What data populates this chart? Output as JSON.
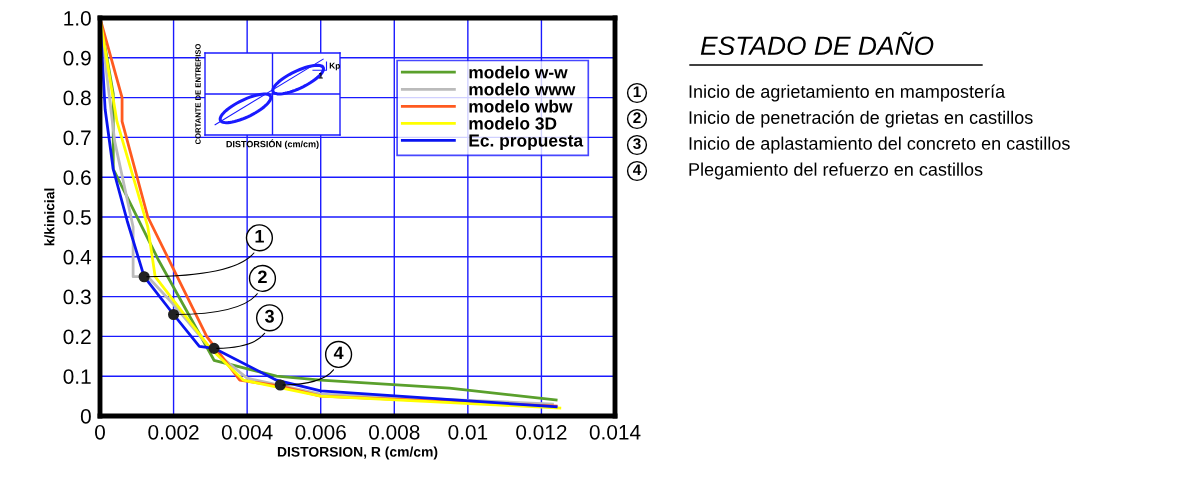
{
  "chart_data": {
    "type": "line",
    "xlabel": "DISTORSION, R (cm/cm)",
    "ylabel": "k/kinicial",
    "xlim": [
      0,
      0.014
    ],
    "ylim": [
      0,
      1.0
    ],
    "xticks": [
      0,
      0.002,
      0.004,
      0.006,
      0.008,
      0.01,
      0.012,
      0.014
    ],
    "yticks": [
      0,
      0.1,
      0.2,
      0.3,
      0.4,
      0.5,
      0.6,
      0.7,
      0.8,
      0.9,
      {
        "value": 1,
        "label": "1.0"
      }
    ],
    "grid": true,
    "legend": "top right",
    "marker": "none",
    "line_style": "solid",
    "series": [
      {
        "name": "modelo w-w",
        "color": "#5aa02c",
        "x": [
          0,
          0.00036,
          0.00036,
          0.0016,
          0.0031,
          0.0048,
          0.006,
          0.0095,
          0.0124
        ],
        "values": [
          1.0,
          0.81,
          0.62,
          0.39,
          0.14,
          0.1,
          0.09,
          0.07,
          0.04
        ]
      },
      {
        "name": "modelo www",
        "color": "#bbbbbb",
        "x": [
          0,
          0.0004,
          0.0009,
          0.0009,
          0.0013,
          0.002,
          0.003,
          0.004,
          0.006,
          0.0123
        ],
        "values": [
          1.0,
          0.69,
          0.475,
          0.35,
          0.35,
          0.28,
          0.17,
          0.095,
          0.055,
          0.03
        ]
      },
      {
        "name": "modelo wbw",
        "color": "#ff5a1f",
        "x": [
          0,
          0.0006,
          0.0006,
          0.0013,
          0.0029,
          0.0038,
          0.0049,
          0.006,
          0.0124
        ],
        "values": [
          1.0,
          0.8,
          0.74,
          0.5,
          0.2,
          0.09,
          0.075,
          0.05,
          0.025
        ]
      },
      {
        "name": "modelo 3D",
        "color": "#ffff00",
        "x": [
          0,
          0.00046,
          0.0013,
          0.0015,
          0.003,
          0.0039,
          0.006,
          0.0125
        ],
        "values": [
          1.0,
          0.74,
          0.475,
          0.35,
          0.17,
          0.09,
          0.05,
          0.02
        ]
      },
      {
        "name": "Ec. propuesta",
        "color": "#0a14f0",
        "x": [
          0,
          0.00014,
          0.00036,
          0.00074,
          0.0012,
          0.002,
          0.0027,
          0.0031,
          0.0048,
          0.006,
          0.0124
        ],
        "values": [
          1.0,
          0.77,
          0.62,
          0.49,
          0.35,
          0.255,
          0.175,
          0.17,
          0.09,
          0.063,
          0.023
        ]
      }
    ],
    "annotations": [
      {
        "text": "1",
        "x": 0.0012,
        "y": 0.35
      },
      {
        "text": "2",
        "x": 0.002,
        "y": 0.255
      },
      {
        "text": "3",
        "x": 0.0031,
        "y": 0.17
      },
      {
        "text": "4",
        "x": 0.0049,
        "y": 0.078
      },
      "ESTADO DE DAÑO",
      "Inicio de agrietamiento en mampostería",
      "Inicio de penetración de grietas en castillos",
      "Inicio de aplastamiento del concreto en castillos",
      "Plegamiento del refuerzo en castillos",
      "CORTANTE DE ENTREPISO",
      "DISTORSIÓN (cm/cm)",
      "Kp",
      "1"
    ]
  }
}
